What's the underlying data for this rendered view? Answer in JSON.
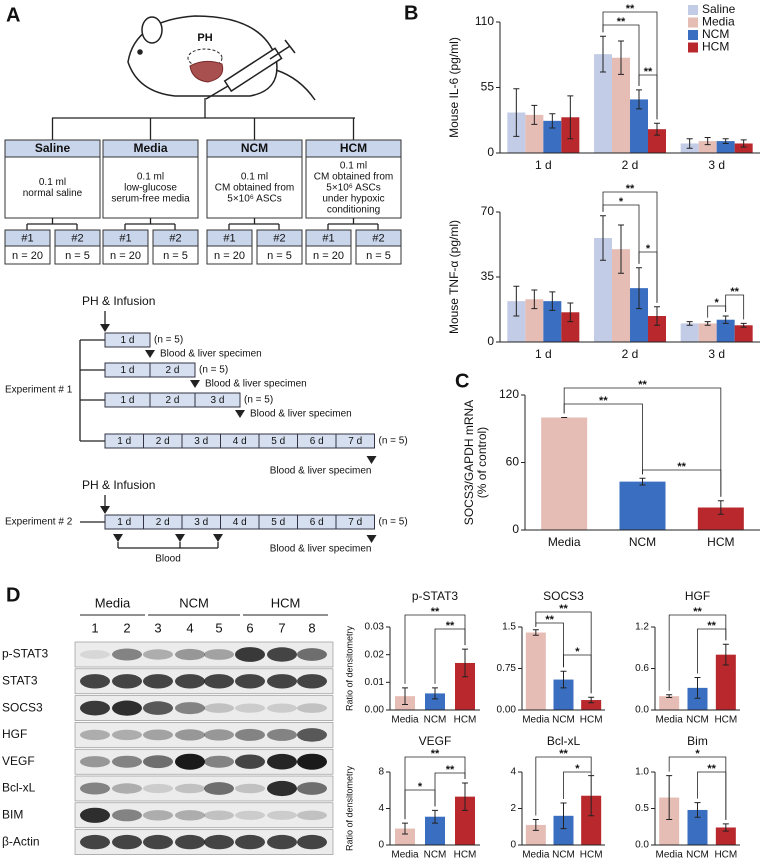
{
  "panel_labels": [
    "A",
    "B",
    "C",
    "D"
  ],
  "experiment_design": {
    "mouse_label": "PH",
    "groups": [
      {
        "name": "Saline",
        "description": [
          "0.1 ml",
          "normal saline"
        ],
        "subgroups": [
          {
            "id": "#1",
            "n": "n = 20"
          },
          {
            "id": "#2",
            "n": "n = 5"
          }
        ]
      },
      {
        "name": "Media",
        "description": [
          "0.1 ml",
          "low-glucose",
          "serum-free media"
        ],
        "subgroups": [
          {
            "id": "#1",
            "n": "n = 20"
          },
          {
            "id": "#2",
            "n": "n = 5"
          }
        ]
      },
      {
        "name": "NCM",
        "description": [
          "0.1 ml",
          "CM obtained from",
          "5×10⁶ ASCs"
        ],
        "subgroups": [
          {
            "id": "#1",
            "n": "n = 20"
          },
          {
            "id": "#2",
            "n": "n = 5"
          }
        ]
      },
      {
        "name": "HCM",
        "description": [
          "0.1 ml",
          "CM obtained from",
          "5×10⁶ ASCs",
          "under hypoxic",
          "conditioning"
        ],
        "subgroups": [
          {
            "id": "#1",
            "n": "n = 20"
          },
          {
            "id": "#2",
            "n": "n = 5"
          }
        ]
      }
    ]
  },
  "timeline": {
    "experiments": [
      {
        "label": "Experiment # 1",
        "infusion_label": "PH & Infusion",
        "rows": [
          {
            "days": [
              "1 d"
            ],
            "n": "(n = 5)",
            "sampling": "Blood & liver specimen"
          },
          {
            "days": [
              "1 d",
              "2 d"
            ],
            "n": "(n = 5)",
            "sampling": "Blood & liver specimen"
          },
          {
            "days": [
              "1 d",
              "2 d",
              "3 d"
            ],
            "n": "(n = 5)",
            "sampling": "Blood & liver specimen"
          },
          {
            "days": [
              "1 d",
              "2 d",
              "3 d",
              "4 d",
              "5 d",
              "6 d",
              "7 d"
            ],
            "n": "(n = 5)",
            "sampling": "Blood & liver specimen"
          }
        ]
      },
      {
        "label": "Experiment # 2",
        "infusion_label": "PH & Infusion",
        "rows": [
          {
            "days": [
              "1 d",
              "2 d",
              "3 d",
              "4 d",
              "5 d",
              "6 d",
              "7 d"
            ],
            "n": "(n = 5)",
            "sampling": "Blood & liver specimen"
          }
        ],
        "blood_label": "Blood"
      }
    ]
  },
  "western_blot": {
    "groups": [
      "Media",
      "NCM",
      "HCM"
    ],
    "lanes": [
      "1",
      "2",
      "3",
      "4",
      "5",
      "6",
      "7",
      "8"
    ],
    "proteins": [
      "p-STAT3",
      "STAT3",
      "SOCS3",
      "HGF",
      "VEGF",
      "Bcl-xL",
      "BIM",
      "β-Actin"
    ]
  },
  "chart_data": [
    {
      "type": "bar",
      "y_label": "Mouse IL-6 (pg/ml)",
      "categories": [
        "1 d",
        "2 d",
        "3 d"
      ],
      "series": [
        {
          "name": "Saline",
          "color": "#c3cce6",
          "values": [
            34,
            83,
            8
          ],
          "errors": [
            20,
            15,
            4
          ]
        },
        {
          "name": "Media",
          "color": "#e6bdb5",
          "values": [
            32,
            80,
            10
          ],
          "errors": [
            8,
            14,
            3
          ]
        },
        {
          "name": "NCM",
          "color": "#3a6ec0",
          "values": [
            27,
            45,
            10
          ],
          "errors": [
            6,
            8,
            2
          ]
        },
        {
          "name": "HCM",
          "color": "#b8282c",
          "values": [
            30,
            20,
            8
          ],
          "errors": [
            18,
            5,
            3
          ]
        }
      ],
      "ylim": [
        0,
        110
      ],
      "yticks": [
        0,
        55,
        110
      ],
      "legend": "upper right",
      "significance": [
        "**",
        "**",
        "**"
      ]
    },
    {
      "type": "bar",
      "y_label": "Mouse TNF-α (pg/ml)",
      "categories": [
        "1 d",
        "2 d",
        "3 d"
      ],
      "series": [
        {
          "name": "Saline",
          "color": "#c3cce6",
          "values": [
            22,
            56,
            10
          ],
          "errors": [
            8,
            12,
            1
          ]
        },
        {
          "name": "Media",
          "color": "#e6bdb5",
          "values": [
            23,
            50,
            10
          ],
          "errors": [
            5,
            13,
            1
          ]
        },
        {
          "name": "NCM",
          "color": "#3a6ec0",
          "values": [
            22,
            29,
            12
          ],
          "errors": [
            5,
            11,
            2
          ]
        },
        {
          "name": "HCM",
          "color": "#b8282c",
          "values": [
            16,
            14,
            9
          ],
          "errors": [
            5,
            5,
            1
          ]
        }
      ],
      "ylim": [
        0,
        70
      ],
      "yticks": [
        0,
        35,
        70
      ],
      "significance": [
        "**",
        "*",
        "*",
        "*",
        "**"
      ]
    },
    {
      "type": "bar",
      "y_label": [
        "SOCS3/GAPDH mRNA",
        "(% of control)"
      ],
      "categories": [
        "Media",
        "NCM",
        "HCM"
      ],
      "values": [
        100,
        43,
        20
      ],
      "errors": [
        0,
        3,
        6
      ],
      "colors": [
        "#e6bdb5",
        "#3a6ec0",
        "#b8282c"
      ],
      "ylim": [
        0,
        120
      ],
      "yticks": [
        0,
        60,
        120
      ],
      "significance": [
        "**",
        "**",
        "**"
      ]
    },
    {
      "type": "bar",
      "title": "p-STAT3",
      "y_label": "Ratio of densitometry",
      "categories": [
        "Media",
        "NCM",
        "HCM"
      ],
      "values": [
        0.005,
        0.006,
        0.017
      ],
      "errors": [
        0.003,
        0.002,
        0.005
      ],
      "colors": [
        "#e6bdb5",
        "#3a6ec0",
        "#b8282c"
      ],
      "ylim": [
        0,
        0.03
      ],
      "yticks": [
        {
          "value": 0,
          "label": "0.00"
        },
        0.01,
        0.02,
        0.03
      ],
      "significance": [
        "**",
        "**"
      ]
    },
    {
      "type": "bar",
      "title": "SOCS3",
      "categories": [
        "Media",
        "NCM",
        "HCM"
      ],
      "values": [
        1.4,
        0.55,
        0.18
      ],
      "errors": [
        0.05,
        0.15,
        0.05
      ],
      "colors": [
        "#e6bdb5",
        "#3a6ec0",
        "#b8282c"
      ],
      "ylim": [
        0,
        1.5
      ],
      "yticks": [
        {
          "value": 0,
          "label": "0.00"
        },
        0.75,
        1.5
      ],
      "significance": [
        "**",
        "**",
        "*"
      ]
    },
    {
      "type": "bar",
      "title": "HGF",
      "categories": [
        "Media",
        "NCM",
        "HCM"
      ],
      "values": [
        0.2,
        0.32,
        0.8
      ],
      "errors": [
        0.02,
        0.15,
        0.15
      ],
      "colors": [
        "#e6bdb5",
        "#3a6ec0",
        "#b8282c"
      ],
      "ylim": [
        0,
        1.2
      ],
      "yticks": [
        {
          "value": 0,
          "label": "0.0"
        },
        0.6,
        1.2
      ],
      "significance": [
        "**",
        "**"
      ]
    },
    {
      "type": "bar",
      "title": "VEGF",
      "y_label": "Ratio of densitometry",
      "categories": [
        "Media",
        "NCM",
        "HCM"
      ],
      "values": [
        1.8,
        3.1,
        5.3
      ],
      "errors": [
        0.6,
        0.7,
        1.5
      ],
      "colors": [
        "#e6bdb5",
        "#3a6ec0",
        "#b8282c"
      ],
      "ylim": [
        0,
        8
      ],
      "yticks": [
        0,
        4,
        8
      ],
      "significance": [
        "**",
        "*",
        "**"
      ]
    },
    {
      "type": "bar",
      "title": "Bcl-xL",
      "categories": [
        "Media",
        "NCM",
        "HCM"
      ],
      "values": [
        1.1,
        1.6,
        2.7
      ],
      "errors": [
        0.3,
        0.7,
        1.1
      ],
      "colors": [
        "#e6bdb5",
        "#3a6ec0",
        "#b8282c"
      ],
      "ylim": [
        0,
        4
      ],
      "yticks": [
        0,
        2,
        4
      ],
      "significance": [
        "**",
        "*"
      ]
    },
    {
      "type": "bar",
      "title": "Bim",
      "categories": [
        "Media",
        "NCM",
        "HCM"
      ],
      "values": [
        0.65,
        0.48,
        0.24
      ],
      "errors": [
        0.3,
        0.1,
        0.05
      ],
      "colors": [
        "#e6bdb5",
        "#3a6ec0",
        "#b8282c"
      ],
      "ylim": [
        0,
        1.0
      ],
      "yticks": [
        {
          "value": 0,
          "label": "0.0"
        },
        0.5,
        {
          "value": 1.0,
          "label": "1.0"
        }
      ],
      "significance": [
        "*",
        "**"
      ]
    }
  ]
}
